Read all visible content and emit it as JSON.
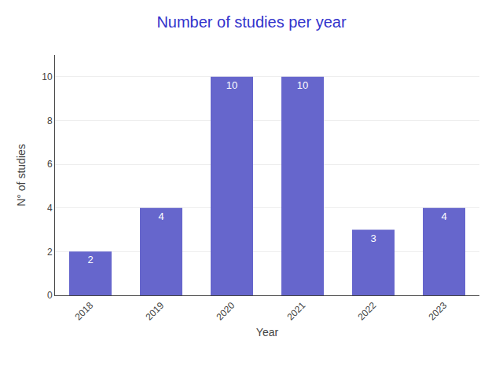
{
  "chart_data": {
    "type": "bar",
    "title": "Number of studies per year",
    "xlabel": "Year",
    "ylabel": "N° of studies",
    "categories": [
      "2018",
      "2019",
      "2020",
      "2021",
      "2022",
      "2023"
    ],
    "values": [
      2,
      4,
      10,
      10,
      3,
      4
    ],
    "color": "#6666cc",
    "ylim": [
      0,
      11
    ],
    "yticks": [
      0,
      2,
      4,
      6,
      8,
      10
    ],
    "grid": true,
    "data_labels": true
  }
}
